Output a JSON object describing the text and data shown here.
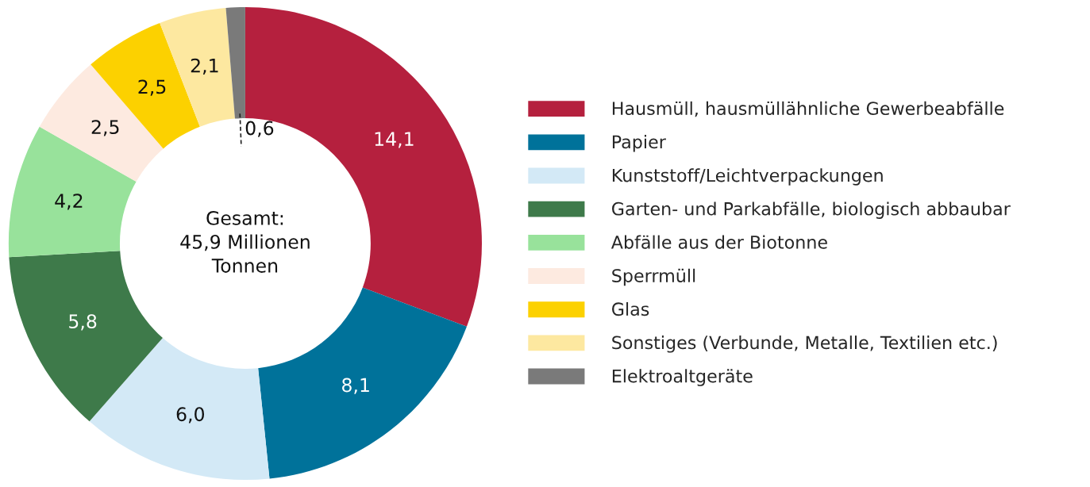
{
  "chart_data": {
    "type": "donut",
    "categories": [
      "Hausmüll, hausmüllähnliche Gewerbeabfälle",
      "Papier",
      "Kunststoff/Leichtverpackungen",
      "Garten- und Parkabfälle, biologisch abbaubar",
      "Abfälle aus der Biotonne",
      "Sperrmüll",
      "Glas",
      "Sonstiges (Verbunde, Metalle, Textilien etc.)",
      "Elektroaltgeräte"
    ],
    "values": [
      14.1,
      8.1,
      6.0,
      5.8,
      4.2,
      2.5,
      2.5,
      2.1,
      0.6
    ],
    "value_labels": [
      "14,1",
      "8,1",
      "6,0",
      "5,8",
      "4,2",
      "2,5",
      "2,5",
      "2,1",
      "0,6"
    ],
    "colors": [
      "#b5203e",
      "#00729a",
      "#d3e9f6",
      "#3e7a4a",
      "#98e29b",
      "#fdeae0",
      "#fcd100",
      "#fde8a0",
      "#7a7a7a"
    ],
    "annotations": [
      "Gesamt:\n45,9 Millionen\nTonnen"
    ],
    "legend": "right"
  }
}
